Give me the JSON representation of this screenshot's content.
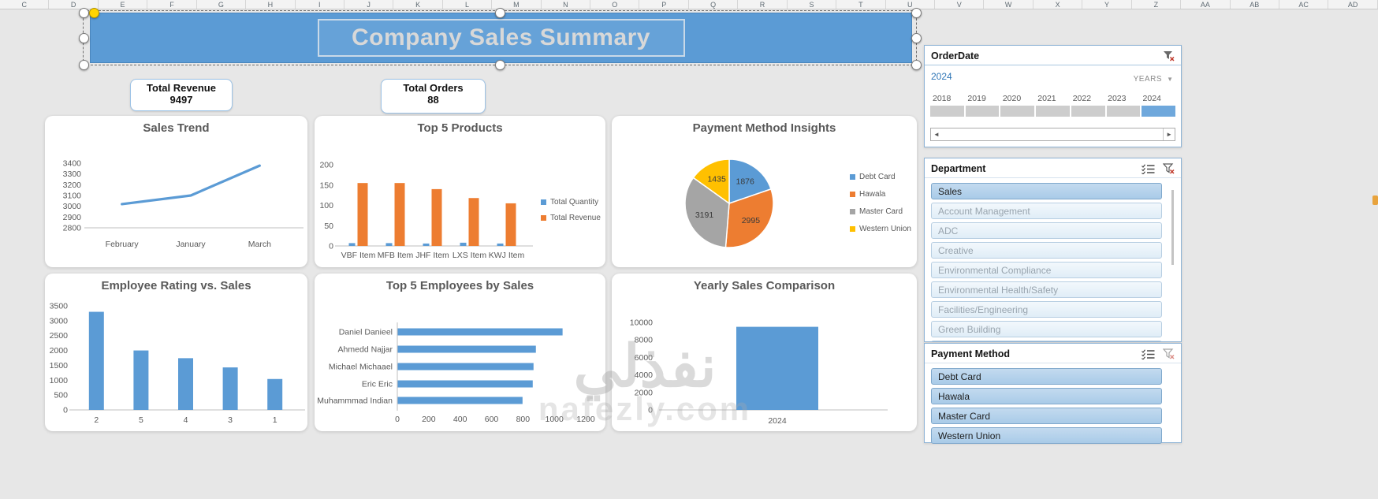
{
  "columns": [
    "C",
    "D",
    "E",
    "F",
    "G",
    "H",
    "I",
    "J",
    "K",
    "L",
    "M",
    "N",
    "O",
    "P",
    "Q",
    "R",
    "S",
    "T",
    "U",
    "V",
    "W",
    "X",
    "Y",
    "Z",
    "AA",
    "AB",
    "AC",
    "AD"
  ],
  "title": {
    "text": "Company Sales Summary"
  },
  "kpis": [
    {
      "label": "Total Revenue",
      "value": "9497"
    },
    {
      "label": "Total Orders",
      "value": "88"
    }
  ],
  "slicers": {
    "order_date": {
      "title": "OrderDate",
      "selected_period": "2024",
      "granularity": "YEARS",
      "years": [
        "2018",
        "2019",
        "2020",
        "2021",
        "2022",
        "2023",
        "2024"
      ],
      "selected_year": "2024"
    },
    "department": {
      "title": "Department",
      "items": [
        {
          "label": "Sales",
          "selected": true
        },
        {
          "label": "Account Management",
          "selected": false
        },
        {
          "label": "ADC",
          "selected": false
        },
        {
          "label": "Creative",
          "selected": false
        },
        {
          "label": "Environmental Compliance",
          "selected": false
        },
        {
          "label": "Environmental Health/Safety",
          "selected": false
        },
        {
          "label": "Facilities/Engineering",
          "selected": false
        },
        {
          "label": "Green Building",
          "selected": false
        }
      ]
    },
    "payment_method": {
      "title": "Payment Method",
      "items": [
        {
          "label": "Debt Card",
          "selected": true
        },
        {
          "label": "Hawala",
          "selected": true
        },
        {
          "label": "Master Card",
          "selected": true
        },
        {
          "label": "Western Union",
          "selected": true
        }
      ]
    }
  },
  "colors": {
    "accent_blue": "#5B9BD5",
    "accent_orange": "#ED7D31",
    "accent_gray": "#A5A5A5",
    "accent_yellow": "#FFC000",
    "period_blue": "#2E75B6",
    "banner_blue": "#5B9BD5"
  },
  "watermark": {
    "main": "نفذلي",
    "sub": "nafezly.com"
  },
  "chart_data": [
    {
      "id": "sales_trend",
      "type": "line",
      "title": "Sales Trend",
      "categories": [
        "February",
        "January",
        "March"
      ],
      "values": [
        3020,
        3100,
        3377
      ],
      "ylim": [
        2800,
        3400
      ],
      "ytick": 100,
      "color": "#5B9BD5",
      "grid": false,
      "legend": "none"
    },
    {
      "id": "top5_products",
      "type": "bar",
      "title": "Top 5 Products",
      "categories": [
        "VBF Item",
        "MFB Item",
        "JHF Item",
        "LXS Item",
        "KWJ Item"
      ],
      "series": [
        {
          "name": "Total Quantity",
          "color": "#5B9BD5",
          "values": [
            7,
            7,
            6,
            8,
            6
          ]
        },
        {
          "name": "Total Revenue",
          "color": "#ED7D31",
          "values": [
            155,
            155,
            140,
            118,
            105
          ]
        }
      ],
      "ylim": [
        0,
        200
      ],
      "ytick": 50,
      "grid": false,
      "legend": "right"
    },
    {
      "id": "payment_pie",
      "type": "pie",
      "title": "Payment Method Insights",
      "labels": [
        "Debt Card",
        "Hawala",
        "Master Card",
        "Western Union"
      ],
      "values": [
        1876,
        2995,
        3191,
        1435
      ],
      "colors": [
        "#5B9BD5",
        "#ED7D31",
        "#A5A5A5",
        "#FFC000"
      ],
      "legend": "right",
      "data_labels": true
    },
    {
      "id": "employee_rating",
      "type": "bar",
      "title": "Employee Rating vs. Sales",
      "categories": [
        "2",
        "5",
        "4",
        "3",
        "1"
      ],
      "series": [
        {
          "name": "Sales",
          "color": "#5B9BD5",
          "values": [
            3300,
            2000,
            1740,
            1430,
            1040
          ]
        }
      ],
      "ylim": [
        0,
        3500
      ],
      "ytick": 500,
      "grid": false,
      "legend": "none"
    },
    {
      "id": "top5_employees",
      "type": "hbar",
      "title": "Top 5 Employees by Sales",
      "categories": [
        "Daniel Danieel",
        "Ahmedd Najjar",
        "Michael Michaael",
        "Eric Eric",
        "Muhammmad Indian"
      ],
      "values": [
        1050,
        880,
        865,
        860,
        795
      ],
      "xlim": [
        0,
        1200
      ],
      "xtick": 200,
      "color": "#5B9BD5",
      "grid": false,
      "legend": "none"
    },
    {
      "id": "yearly_comparison",
      "type": "bar",
      "title": "Yearly Sales Comparison",
      "categories": [
        "2024"
      ],
      "series": [
        {
          "name": "Sales",
          "color": "#5B9BD5",
          "values": [
            9497
          ]
        }
      ],
      "ylim": [
        0,
        10000
      ],
      "ytick": 2000,
      "grid": false,
      "legend": "none"
    }
  ]
}
